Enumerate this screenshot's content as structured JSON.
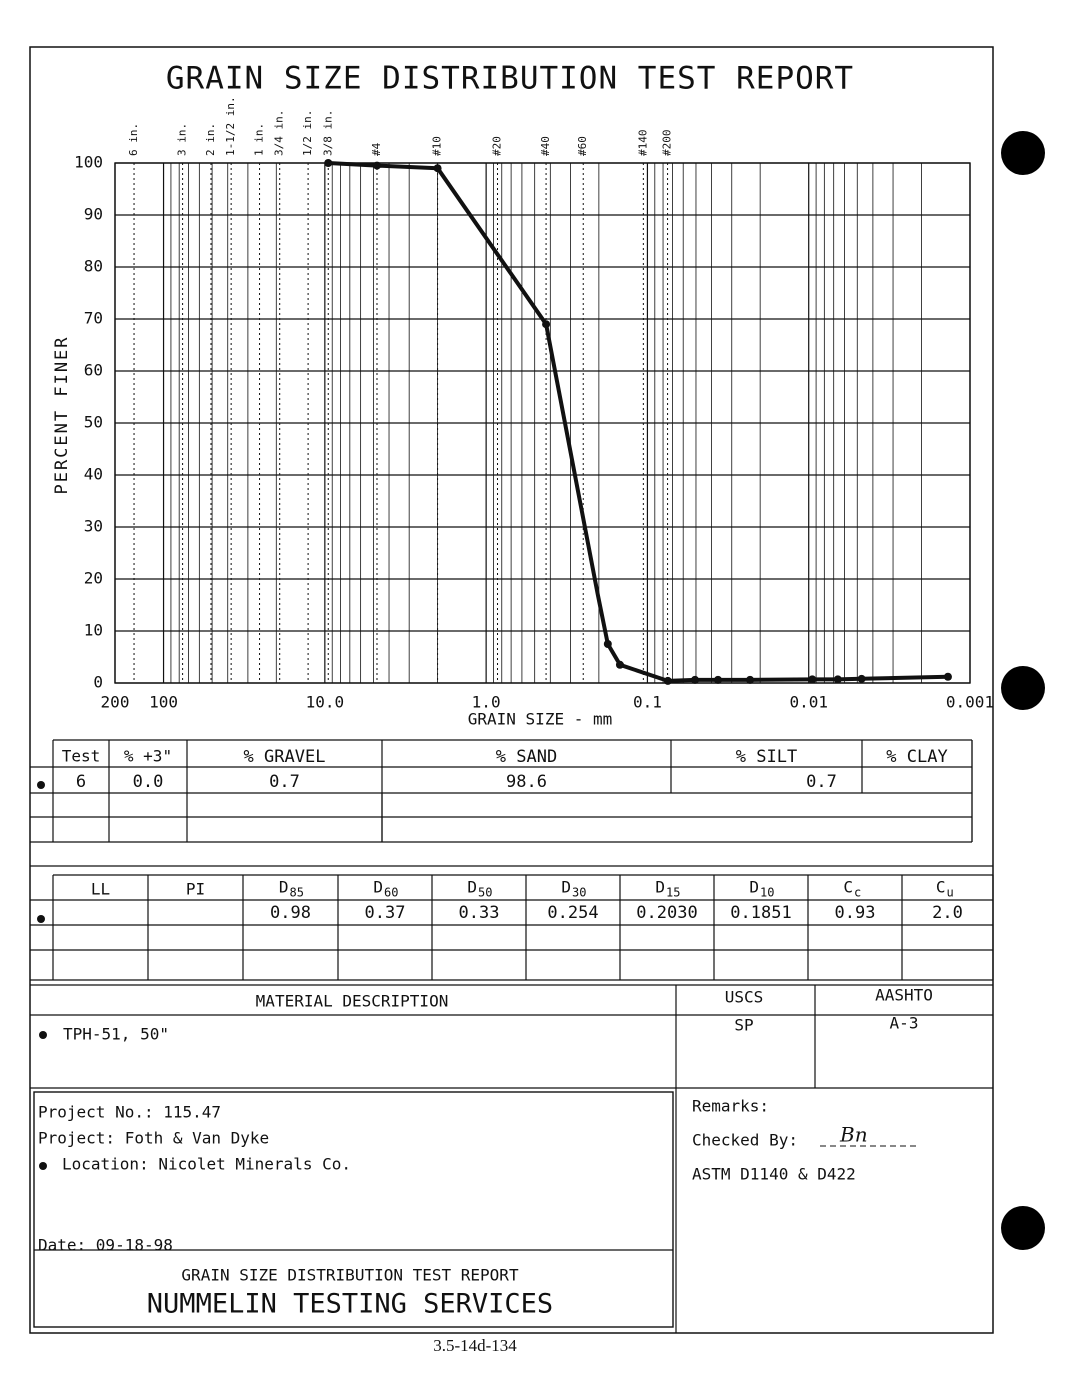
{
  "title": "GRAIN SIZE DISTRIBUTION TEST REPORT",
  "chart_data": {
    "type": "line",
    "y_label": "PERCENT FINER",
    "x_label": "GRAIN SIZE - mm",
    "x_log": true,
    "x_reversed": true,
    "grid": true,
    "color": "#111111",
    "xlim": [
      200,
      0.001
    ],
    "ylim": [
      0,
      100
    ],
    "xticks": [
      200,
      100,
      {
        "value": 10,
        "label": "10.0"
      },
      {
        "value": 1,
        "label": "1.0"
      },
      0.1,
      0.01,
      0.001
    ],
    "yticks": [
      0,
      10,
      20,
      30,
      40,
      50,
      60,
      70,
      80,
      90,
      100
    ],
    "sieve_ticks": [
      {
        "value": 152.4,
        "label": "6 in."
      },
      {
        "value": 76.2,
        "label": "3 in."
      },
      {
        "value": 50.8,
        "label": "2 in."
      },
      {
        "value": 38.1,
        "label": "1-1/2 in."
      },
      {
        "value": 25.4,
        "label": "1 in."
      },
      {
        "value": 19.05,
        "label": "3/4 in."
      },
      {
        "value": 12.7,
        "label": "1/2 in."
      },
      {
        "value": 9.525,
        "label": "3/8 in."
      },
      {
        "value": 4.75,
        "label": "#4"
      },
      {
        "value": 2.0,
        "label": "#10"
      },
      {
        "value": 0.85,
        "label": "#20"
      },
      {
        "value": 0.425,
        "label": "#40"
      },
      {
        "value": 0.25,
        "label": "#60"
      },
      {
        "value": 0.106,
        "label": "#140"
      },
      {
        "value": 0.075,
        "label": "#200"
      }
    ],
    "x": [
      9.525,
      4.75,
      2.0,
      0.425,
      0.203,
      0.176,
      0.148,
      0.0747,
      0.0507,
      0.0365,
      0.0231,
      0.0095,
      0.0066,
      0.0047,
      0.00137
    ],
    "values": [
      100,
      99.5,
      99,
      69,
      17,
      7.5,
      3.5,
      0.4,
      0.6,
      0.6,
      0.6,
      0.7,
      0.7,
      0.8,
      1.2
    ],
    "markers": [
      true,
      true,
      true,
      true,
      false,
      true,
      true,
      true,
      true,
      true,
      true,
      true,
      true,
      true,
      true
    ]
  },
  "gradation": {
    "headers": [
      "Test",
      "% +3\"",
      "% GRAVEL",
      "% SAND",
      "% SILT",
      "% CLAY"
    ],
    "row": [
      "6",
      "0.0",
      "0.7",
      "98.6",
      "0.7"
    ]
  },
  "coefficients": {
    "headers": [
      {
        "text": "LL"
      },
      {
        "text": "PI"
      },
      {
        "text": "D",
        "sub": "85"
      },
      {
        "text": "D",
        "sub": "60"
      },
      {
        "text": "D",
        "sub": "50"
      },
      {
        "text": "D",
        "sub": "30"
      },
      {
        "text": "D",
        "sub": "15"
      },
      {
        "text": "D",
        "sub": "10"
      },
      {
        "text": "C",
        "sub": "c"
      },
      {
        "text": "C",
        "sub": "u"
      }
    ],
    "values": [
      "0.98",
      "0.37",
      "0.33",
      "0.254",
      "0.2030",
      "0.1851",
      "0.93",
      "2.0"
    ]
  },
  "material": {
    "header": "MATERIAL DESCRIPTION",
    "uscs_header": "USCS",
    "aashto_header": "AASHTO",
    "description": "TPH-51, 50\"",
    "uscs": "SP",
    "aashto": "A-3"
  },
  "project": {
    "number": "Project No.: 115.47",
    "name": "Project: Foth & Van Dyke",
    "location": "Location: Nicolet Minerals Co.",
    "date": "Date: 09-18-98"
  },
  "remarks": {
    "label": "Remarks:",
    "checked": "Checked By:",
    "signature": "Bn",
    "standard": "ASTM D1140 & D422"
  },
  "footer": {
    "report": "GRAIN SIZE DISTRIBUTION TEST REPORT",
    "company": "NUMMELIN TESTING SERVICES",
    "page_id": "3.5-14d-134"
  }
}
